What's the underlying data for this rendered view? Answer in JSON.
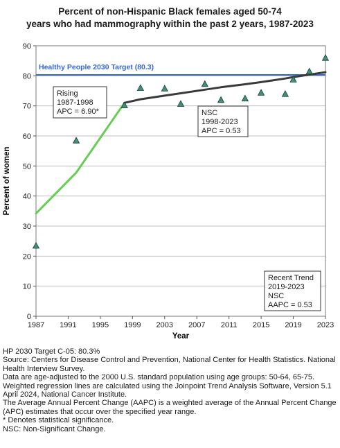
{
  "title_lines": [
    "Percent of non-Hispanic Black females aged 50-74",
    "years who had mammography within the past 2 years, 1987-2023"
  ],
  "chart_data": {
    "type": "scatter",
    "title": "Percent of non-Hispanic Black females aged 50-74 years who had mammography within the past 2 years, 1987-2023",
    "xlabel": "Year",
    "ylabel": "Percent of women",
    "xlim": [
      1987,
      2023
    ],
    "ylim": [
      0,
      90
    ],
    "x_ticks": [
      1987,
      1991,
      1995,
      1999,
      2003,
      2007,
      2011,
      2015,
      2019,
      2023
    ],
    "y_ticks": [
      0,
      10,
      20,
      30,
      40,
      50,
      60,
      70,
      80,
      90
    ],
    "grid": "horizontal",
    "observed": {
      "marker": "triangle",
      "color": "#3f8f7a",
      "x": [
        1987,
        1992,
        1998,
        2000,
        2003,
        2005,
        2008,
        2010,
        2013,
        2015,
        2018,
        2019,
        2021,
        2023
      ],
      "y": [
        23.5,
        58.5,
        70.2,
        76.0,
        75.8,
        70.7,
        77.3,
        72.0,
        72.5,
        74.4,
        74.0,
        78.8,
        81.5,
        86.0
      ]
    },
    "trend_segments": [
      {
        "label": "Rising",
        "color": "#66cc55",
        "x": [
          1987,
          1992,
          1998
        ],
        "y": [
          34.2,
          47.8,
          71.0
        ]
      },
      {
        "label": "NSC",
        "color": "#3a3a3a",
        "x": [
          1998,
          2000,
          2003,
          2005,
          2008,
          2010,
          2013,
          2015,
          2018,
          2019,
          2021,
          2023
        ],
        "y": [
          71.0,
          72.2,
          73.4,
          74.2,
          75.4,
          76.2,
          77.2,
          77.9,
          79.1,
          79.6,
          80.4,
          81.2
        ]
      }
    ],
    "target": {
      "label": "Healthy People 2030 Target (80.3)",
      "value": 80.3,
      "color": "#3366dd"
    },
    "annotations": [
      {
        "lines": [
          "Rising",
          "1987-1998",
          "APC =  6.90*"
        ]
      },
      {
        "lines": [
          "NSC",
          "1998-2023",
          "APC =  0.53"
        ]
      },
      {
        "lines": [
          "Recent Trend",
          "2019-2023",
          "NSC",
          "AAPC =  0.53"
        ]
      }
    ]
  },
  "footnotes": [
    "HP 2030 Target C-05: 80.3%",
    "Source: Centers for Disease Control and Prevention, National Center for Health Statistics. National Health Interview Survey.",
    "Data are age-adjusted to the 2000 U.S. standard population using age groups: 50-64, 65-75.",
    "Weighted regression lines are calculated using the Joinpoint Trend Analysis Software, Version 5.1 April 2024, National Cancer Institute.",
    "The Average Annual Percent Change (AAPC) is a weighted average of the Annual Percent Change (APC) estimates that occur over the specified year range.",
    "* Denotes statistical significance.",
    "NSC: Non-Significant Change."
  ]
}
